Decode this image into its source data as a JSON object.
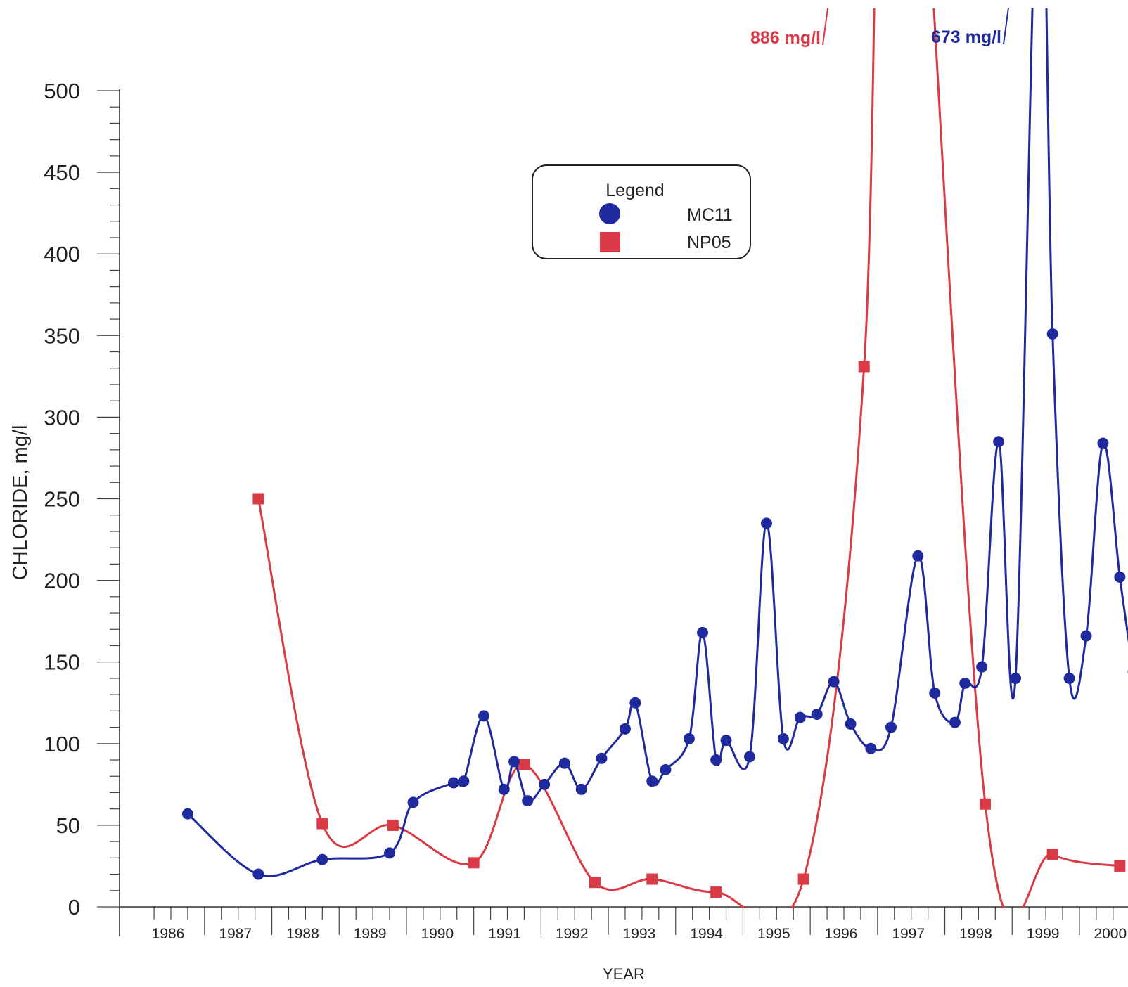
{
  "chart_data": {
    "type": "line",
    "title": "",
    "xlabel": "YEAR",
    "ylabel": "CHLORIDE, mg/l",
    "xlim": [
      1985.7,
      2000.4
    ],
    "ylim": [
      0,
      500
    ],
    "y_ticks": [
      0,
      50,
      100,
      150,
      200,
      250,
      300,
      350,
      400,
      450,
      500
    ],
    "x_ticks": [
      1986,
      1987,
      1988,
      1989,
      1990,
      1991,
      1992,
      1993,
      1994,
      1995,
      1996,
      1997,
      1998,
      1999,
      2000
    ],
    "grid": false,
    "legend": {
      "title": "Legend",
      "placement": "top-center"
    },
    "series": [
      {
        "name": "MC11",
        "color": "#1f2a9e",
        "marker": "circle",
        "off_scale_label": "673 mg/l",
        "off_scale_value": 673,
        "points": [
          [
            1986.25,
            57
          ],
          [
            1987.3,
            20
          ],
          [
            1988.25,
            29
          ],
          [
            1989.25,
            33
          ],
          [
            1989.6,
            64
          ],
          [
            1990.2,
            76
          ],
          [
            1990.35,
            77
          ],
          [
            1990.65,
            117
          ],
          [
            1990.95,
            72
          ],
          [
            1991.1,
            89
          ],
          [
            1991.3,
            65
          ],
          [
            1991.55,
            75
          ],
          [
            1991.85,
            88
          ],
          [
            1992.1,
            72
          ],
          [
            1992.4,
            91
          ],
          [
            1992.75,
            109
          ],
          [
            1992.9,
            125
          ],
          [
            1993.15,
            77
          ],
          [
            1993.35,
            84
          ],
          [
            1993.7,
            103
          ],
          [
            1993.9,
            168
          ],
          [
            1994.1,
            90
          ],
          [
            1994.25,
            102
          ],
          [
            1994.6,
            92
          ],
          [
            1994.85,
            235
          ],
          [
            1995.1,
            103
          ],
          [
            1995.35,
            116
          ],
          [
            1995.6,
            118
          ],
          [
            1995.85,
            138
          ],
          [
            1996.1,
            112
          ],
          [
            1996.4,
            97
          ],
          [
            1996.7,
            110
          ],
          [
            1997.1,
            215
          ],
          [
            1997.35,
            131
          ],
          [
            1997.65,
            113
          ],
          [
            1997.8,
            137
          ],
          [
            1998.05,
            147
          ],
          [
            1998.3,
            285
          ],
          [
            1998.55,
            140
          ],
          [
            1998.9,
            673
          ],
          [
            1999.1,
            351
          ],
          [
            1999.35,
            140
          ],
          [
            1999.6,
            166
          ],
          [
            1999.85,
            284
          ],
          [
            2000.1,
            202
          ],
          [
            2000.3,
            144
          ]
        ]
      },
      {
        "name": "NP05",
        "color": "#d93a45",
        "marker": "square",
        "off_scale_label": "886 mg/l",
        "off_scale_value": 886,
        "points": [
          [
            1987.3,
            250
          ],
          [
            1988.25,
            51
          ],
          [
            1989.3,
            50
          ],
          [
            1990.5,
            27
          ],
          [
            1991.25,
            87
          ],
          [
            1992.3,
            15
          ],
          [
            1993.15,
            17
          ],
          [
            1994.1,
            9
          ],
          [
            1995.4,
            17
          ],
          [
            1996.3,
            331
          ],
          [
            1996.75,
            886
          ],
          [
            1998.1,
            63
          ],
          [
            1999.1,
            32
          ],
          [
            2000.1,
            25
          ]
        ]
      }
    ]
  }
}
